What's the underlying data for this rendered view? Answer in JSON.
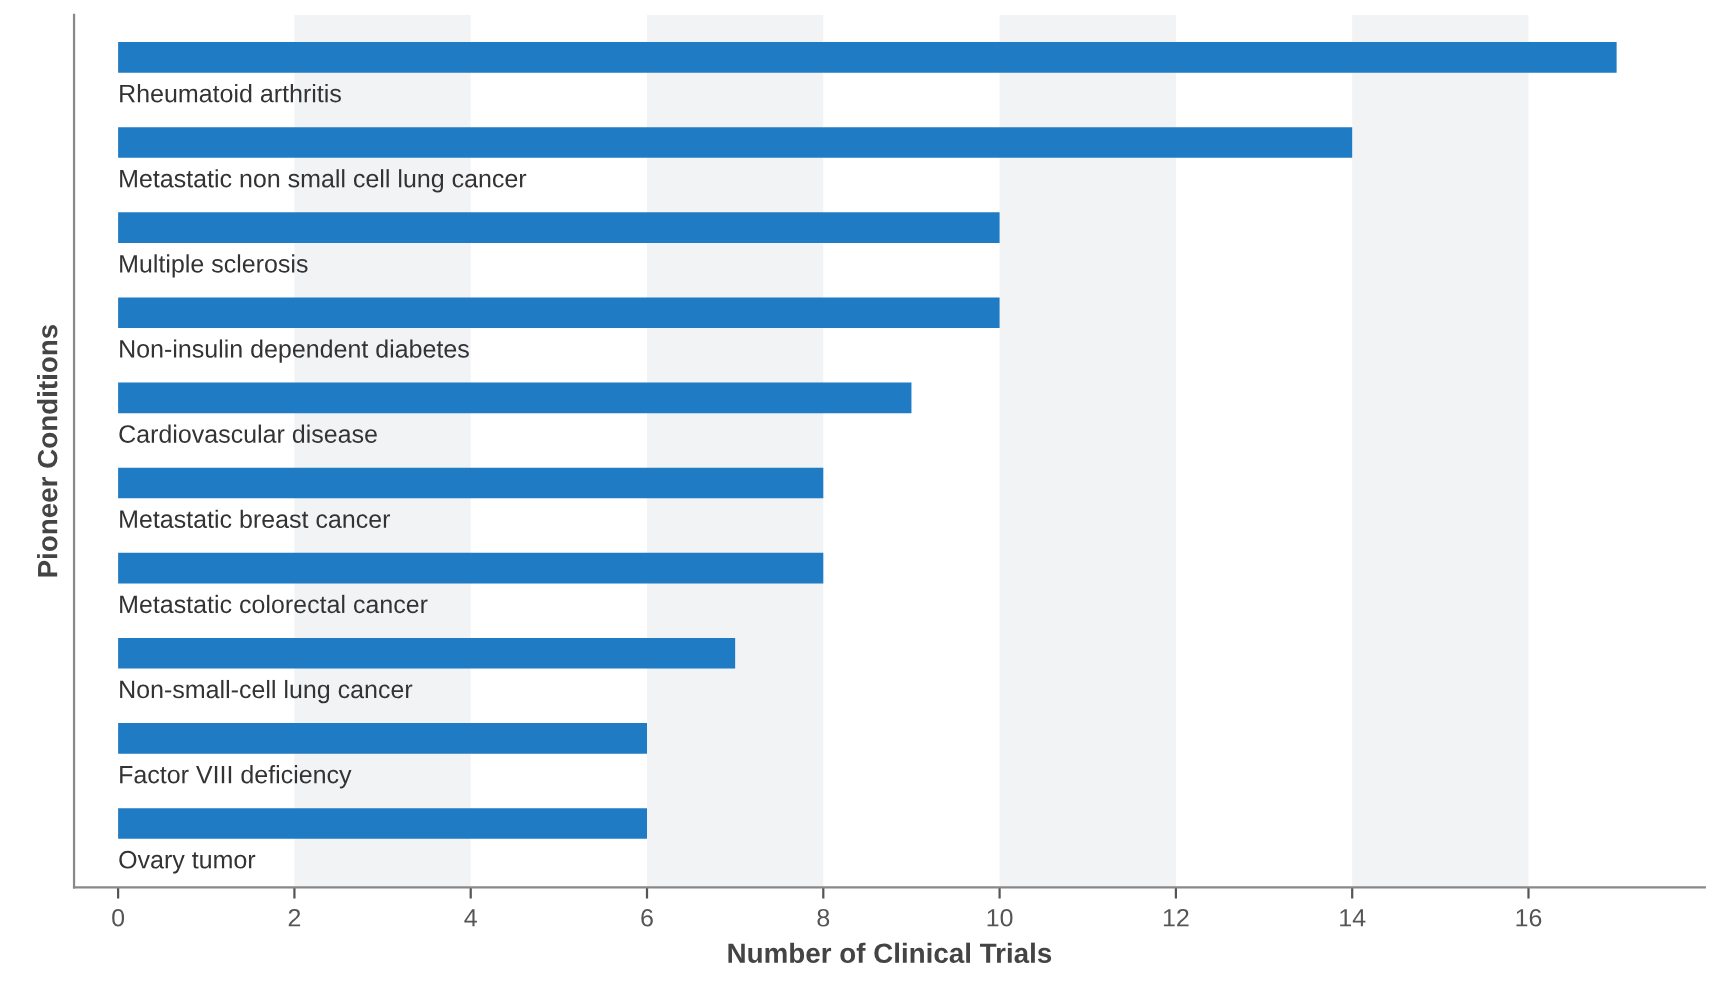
{
  "chart_data": {
    "type": "bar",
    "orientation": "horizontal",
    "xlabel": "Number of Clinical Trials",
    "ylabel": "Pioneer Conditions",
    "categories": [
      "Rheumatoid arthritis",
      "Metastatic non small cell lung cancer",
      "Multiple sclerosis",
      "Non-insulin dependent diabetes",
      "Cardiovascular disease",
      "Metastatic breast cancer",
      "Metastatic colorectal cancer",
      "Non-small-cell lung cancer",
      "Factor VIII deficiency",
      "Ovary tumor"
    ],
    "values": [
      17,
      14,
      10,
      10,
      9,
      8,
      8,
      7,
      6,
      6
    ],
    "color": "#1f7bc4",
    "xlim": [
      -0.5,
      18
    ],
    "xticks": [
      0,
      2,
      4,
      6,
      8,
      10,
      12,
      14,
      16
    ],
    "bands": [
      {
        "axis": "x",
        "from": 2,
        "to": 4,
        "color": "#f1f3f5"
      },
      {
        "axis": "x",
        "from": 6,
        "to": 8,
        "color": "#f1f3f5"
      },
      {
        "axis": "x",
        "from": 10,
        "to": 12,
        "color": "#f1f3f5"
      },
      {
        "axis": "x",
        "from": 14,
        "to": 16,
        "color": "#f1f3f5"
      }
    ],
    "grid": false,
    "legend": false
  }
}
